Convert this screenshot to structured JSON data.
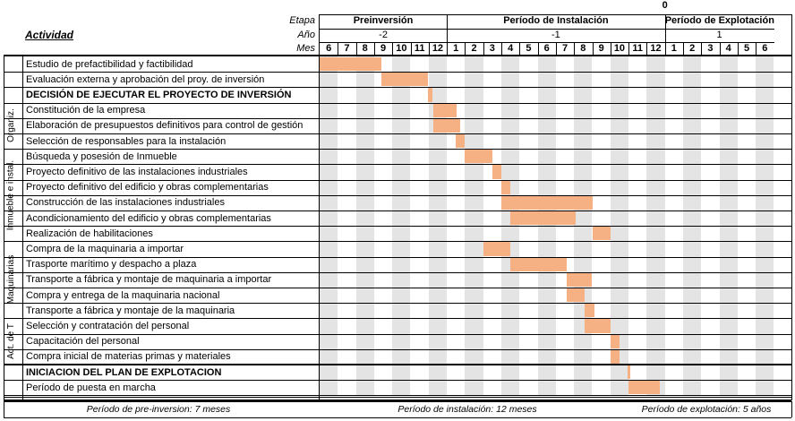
{
  "header": {
    "zero_mark": "0",
    "row_labels": {
      "stage": "Etapa",
      "year": "Año",
      "month": "Mes"
    },
    "activity_title": "Actividad",
    "stages": [
      {
        "label": "Preinversión",
        "start": 0,
        "span": 7
      },
      {
        "label": "Período de Instalación",
        "start": 7,
        "span": 12
      },
      {
        "label": "Período de Explotación",
        "start": 19,
        "span": 6
      }
    ],
    "years": [
      {
        "label": "-2",
        "start": 0,
        "span": 7
      },
      {
        "label": "-1",
        "start": 7,
        "span": 12
      },
      {
        "label": "1",
        "start": 19,
        "span": 6
      }
    ],
    "months": [
      "6",
      "7",
      "8",
      "9",
      "10",
      "11",
      "12",
      "1",
      "2",
      "3",
      "4",
      "5",
      "6",
      "7",
      "8",
      "9",
      "10",
      "11",
      "12",
      "1",
      "2",
      "3",
      "4",
      "5",
      "6"
    ]
  },
  "groups": [
    {
      "label": "Organiz.",
      "first_row": 3,
      "last_row": 5
    },
    {
      "label": "Inmueble e instal.",
      "first_row": 6,
      "last_row": 11
    },
    {
      "label": "Maquinarias",
      "first_row": 12,
      "last_row": 16
    },
    {
      "label": "Act. de T",
      "first_row": 17,
      "last_row": 19
    }
  ],
  "activities": [
    {
      "name": "Estudio de prefactibilidad y factibilidad",
      "bold": false,
      "start": 0,
      "end": 3.4
    },
    {
      "name": "Evaluación externa y aprobación del proy. de inversión",
      "bold": false,
      "start": 3.4,
      "end": 5.95
    },
    {
      "name": "DECISIÓN DE EJECUTAR EL PROYECTO DE INVERSIÓN",
      "bold": true,
      "start": 5.95,
      "end": 6.2
    },
    {
      "name": "Constitución de la empresa",
      "bold": false,
      "start": 6.25,
      "end": 7.55
    },
    {
      "name": "Elaboración de presupuestos definitivos para control de gestión",
      "bold": false,
      "start": 6.25,
      "end": 7.75
    },
    {
      "name": "Selección de responsables para la instalación",
      "bold": false,
      "start": 7.5,
      "end": 8.0
    },
    {
      "name": "Búsqueda y posesión de Inmueble",
      "bold": false,
      "start": 8.0,
      "end": 9.5
    },
    {
      "name": "Proyecto definitivo de las instalaciones industriales",
      "bold": false,
      "start": 9.5,
      "end": 10.0
    },
    {
      "name": "Proyecto definitivo del edificio y obras complementarias",
      "bold": false,
      "start": 10.0,
      "end": 10.5
    },
    {
      "name": "Construcción de las instalaciones industriales",
      "bold": false,
      "start": 10.0,
      "end": 15.0
    },
    {
      "name": "Acondicionamiento del edificio y obras complementarias",
      "bold": false,
      "start": 10.5,
      "end": 14.1
    },
    {
      "name": "Realización de habilitaciones",
      "bold": false,
      "start": 15.0,
      "end": 16.0
    },
    {
      "name": "Compra de la maquinaria a importar",
      "bold": false,
      "start": 9.0,
      "end": 10.5
    },
    {
      "name": "Trasporte marítimo y despacho a plaza",
      "bold": false,
      "start": 10.5,
      "end": 13.6
    },
    {
      "name": "Transporte a fábrica y montaje de maquinaria a importar",
      "bold": false,
      "start": 13.6,
      "end": 15.0
    },
    {
      "name": "Compra y entrega de la maquinaria nacional",
      "bold": false,
      "start": 13.6,
      "end": 14.6
    },
    {
      "name": "Transporte a fábrica y montaje de la maquinaria",
      "bold": false,
      "start": 14.6,
      "end": 15.1
    },
    {
      "name": "Selección y contratación del personal",
      "bold": false,
      "start": 14.6,
      "end": 16.0
    },
    {
      "name": "Capacitación del personal",
      "bold": false,
      "start": 16.0,
      "end": 16.5
    },
    {
      "name": "Compra inicial de materias primas y materiales",
      "bold": false,
      "start": 16.0,
      "end": 16.5
    },
    {
      "name": "INICIACION DEL PLAN DE EXPLOTACION",
      "bold": true,
      "start": 16.95,
      "end": 17.1
    },
    {
      "name": "Período de puesta en marcha",
      "bold": false,
      "start": 17.0,
      "end": 18.7
    }
  ],
  "footer": [
    "Período de pre-inversion: 7 meses",
    "Período de instalación: 12 meses",
    "Período de explotación: 5 años"
  ],
  "colors": {
    "bar": "#f5b083",
    "stripe": "#e4e4e4",
    "grid": "#000000"
  }
}
